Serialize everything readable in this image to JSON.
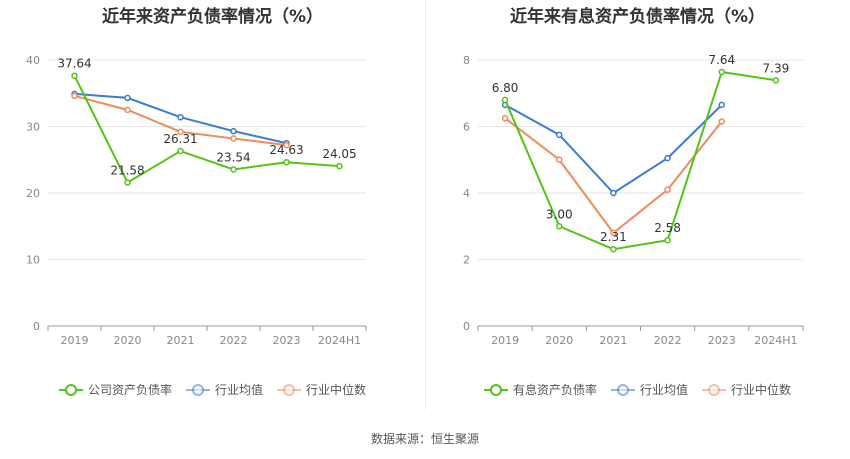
{
  "source_label": "数据来源：恒生聚源",
  "chart_data": [
    {
      "type": "line",
      "title": "近年来资产负债率情况（%）",
      "categories": [
        "2019",
        "2020",
        "2021",
        "2022",
        "2023",
        "2024H1"
      ],
      "ylim": [
        0,
        40
      ],
      "yticks": [
        0,
        10,
        20,
        30,
        40
      ],
      "grid": true,
      "legend_position": "bottom",
      "series": [
        {
          "name": "公司资产负债率",
          "color": "#52c41a",
          "labeled": true,
          "values": [
            37.64,
            21.58,
            26.31,
            23.54,
            24.63,
            24.05
          ],
          "labels": [
            "37.64",
            "21.58",
            "26.31",
            "23.54",
            "24.63",
            "24.05"
          ]
        },
        {
          "name": "行业均值",
          "color": "#3a7bd5",
          "labeled": false,
          "values": [
            34.9,
            34.3,
            31.4,
            29.3,
            27.5,
            null
          ]
        },
        {
          "name": "行业中位数",
          "color": "#f08a5d",
          "labeled": false,
          "values": [
            34.6,
            32.5,
            29.2,
            28.2,
            27.2,
            null
          ]
        }
      ]
    },
    {
      "type": "line",
      "title": "近年来有息资产负债率情况（%）",
      "categories": [
        "2019",
        "2020",
        "2021",
        "2022",
        "2023",
        "2024H1"
      ],
      "ylim": [
        0,
        8
      ],
      "yticks": [
        0,
        2,
        4,
        6,
        8
      ],
      "grid": true,
      "legend_position": "bottom",
      "series": [
        {
          "name": "有息资产负债率",
          "color": "#52c41a",
          "labeled": true,
          "values": [
            6.8,
            3.0,
            2.31,
            2.58,
            7.64,
            7.39
          ],
          "labels": [
            "6.80",
            "3.00",
            "2.31",
            "2.58",
            "7.64",
            "7.39"
          ]
        },
        {
          "name": "行业均值",
          "color": "#3a7bd5",
          "labeled": false,
          "values": [
            6.65,
            5.75,
            4.0,
            5.05,
            6.65,
            null
          ]
        },
        {
          "name": "行业中位数",
          "color": "#f08a5d",
          "labeled": false,
          "values": [
            6.25,
            5.0,
            2.8,
            4.1,
            6.15,
            null
          ]
        }
      ]
    }
  ]
}
